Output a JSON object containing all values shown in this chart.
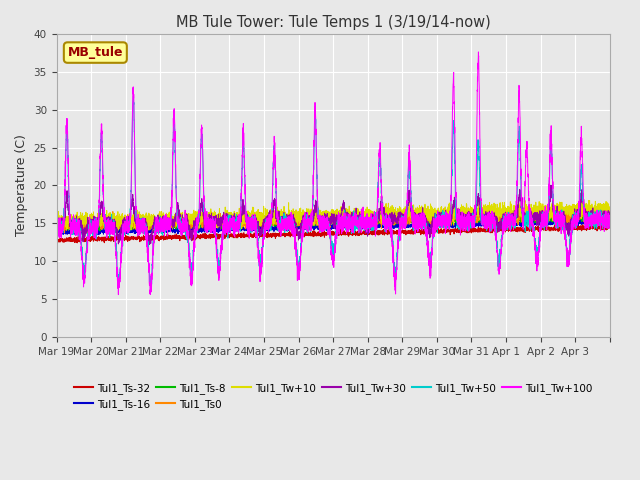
{
  "title": "MB Tule Tower: Tule Temps 1 (3/19/14-now)",
  "ylabel": "Temperature (C)",
  "ylim": [
    0,
    40
  ],
  "yticks": [
    0,
    5,
    10,
    15,
    20,
    25,
    30,
    35,
    40
  ],
  "bg_color": "#e8e8e8",
  "x_tick_labels": [
    "Mar 19",
    "Mar 20",
    "Mar 21",
    "Mar 22",
    "Mar 23",
    "Mar 24",
    "Mar 25",
    "Mar 26",
    "Mar 27",
    "Mar 28",
    "Mar 29",
    "Mar 30",
    "Mar 31",
    "Apr 1",
    "Apr 2",
    "Apr 3"
  ],
  "series": [
    {
      "label": "Tul1_Ts-32",
      "color": "#cc0000"
    },
    {
      "label": "Tul1_Ts-16",
      "color": "#0000cc"
    },
    {
      "label": "Tul1_Ts-8",
      "color": "#00bb00"
    },
    {
      "label": "Tul1_Ts0",
      "color": "#ff8800"
    },
    {
      "label": "Tul1_Tw+10",
      "color": "#dddd00"
    },
    {
      "label": "Tul1_Tw+30",
      "color": "#9900aa"
    },
    {
      "label": "Tul1_Tw+50",
      "color": "#00cccc"
    },
    {
      "label": "Tul1_Tw+100",
      "color": "#ff00ff"
    }
  ],
  "legend_box_color": "#ffff99",
  "legend_box_text": "MB_tule",
  "legend_box_text_color": "#990000"
}
